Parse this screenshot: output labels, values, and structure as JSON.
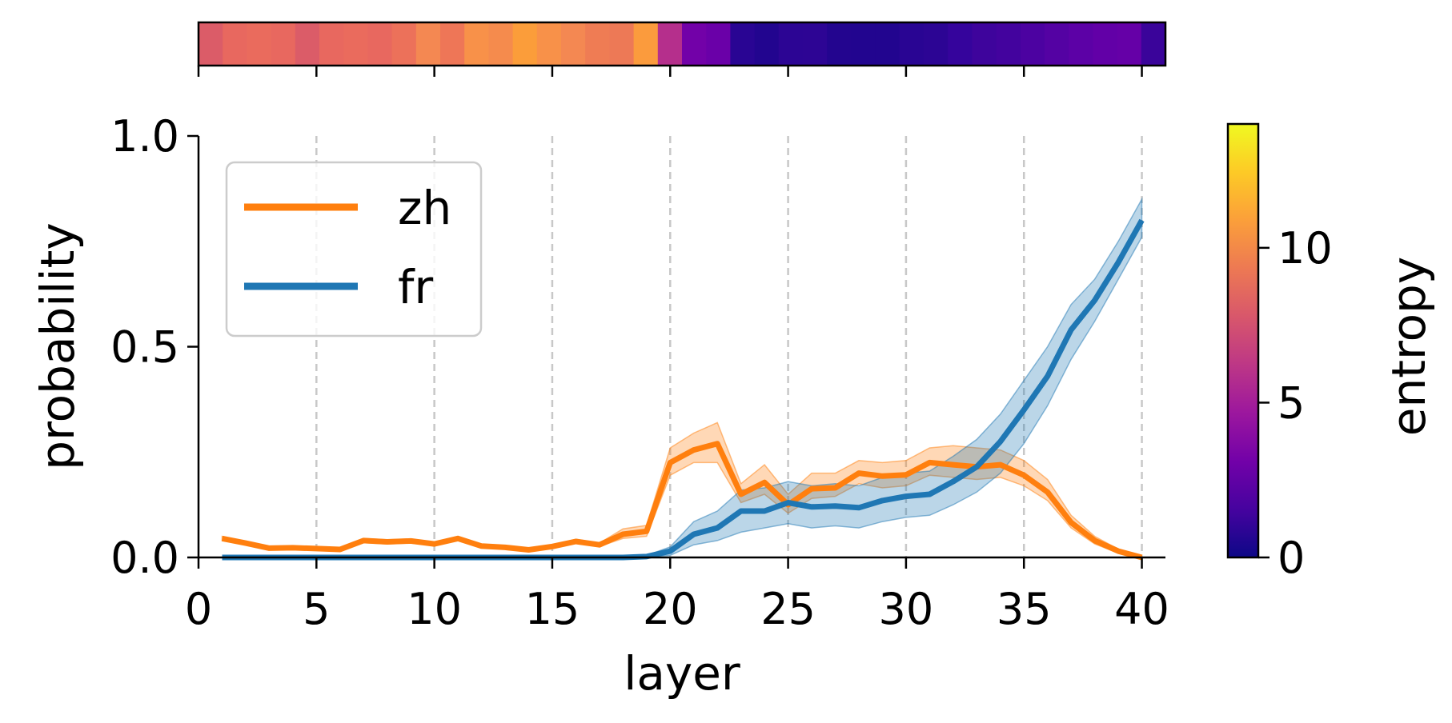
{
  "chart_data": {
    "type": "line",
    "xlabel": "layer",
    "ylabel": "probability",
    "xlim": [
      0,
      41
    ],
    "ylim": [
      0,
      1
    ],
    "x_ticks": [
      0,
      5,
      10,
      15,
      20,
      25,
      30,
      35,
      40
    ],
    "x_tick_labels": [
      "0",
      "5",
      "10",
      "15",
      "20",
      "25",
      "30",
      "35",
      "40"
    ],
    "y_ticks": [
      0,
      0.5,
      1
    ],
    "y_tick_labels": [
      "0.0",
      "0.5",
      "1.0"
    ],
    "grid": "vertical dashed lines at x ticks",
    "legend": {
      "placement": "top-left",
      "entries": [
        "zh",
        "fr"
      ]
    },
    "x": [
      1,
      2,
      3,
      4,
      5,
      6,
      7,
      8,
      9,
      10,
      11,
      12,
      13,
      14,
      15,
      16,
      17,
      18,
      19,
      20,
      21,
      22,
      23,
      24,
      25,
      26,
      27,
      28,
      29,
      30,
      31,
      32,
      33,
      34,
      35,
      36,
      37,
      38,
      39,
      40
    ],
    "series": [
      {
        "name": "zh",
        "color": "#ff7f0e",
        "values": [
          0.045,
          0.034,
          0.022,
          0.023,
          0.021,
          0.019,
          0.04,
          0.037,
          0.039,
          0.032,
          0.045,
          0.027,
          0.024,
          0.018,
          0.026,
          0.038,
          0.03,
          0.055,
          0.062,
          0.225,
          0.255,
          0.27,
          0.15,
          0.178,
          0.125,
          0.163,
          0.165,
          0.2,
          0.193,
          0.196,
          0.225,
          0.22,
          0.215,
          0.22,
          0.195,
          0.155,
          0.083,
          0.04,
          0.015,
          0.0
        ],
        "band_lower": [
          0.04,
          0.03,
          0.019,
          0.02,
          0.018,
          0.016,
          0.035,
          0.032,
          0.034,
          0.028,
          0.04,
          0.023,
          0.02,
          0.015,
          0.022,
          0.033,
          0.026,
          0.045,
          0.05,
          0.195,
          0.225,
          0.225,
          0.13,
          0.15,
          0.105,
          0.14,
          0.145,
          0.175,
          0.165,
          0.17,
          0.195,
          0.19,
          0.185,
          0.19,
          0.17,
          0.135,
          0.07,
          0.032,
          0.01,
          0.0
        ],
        "band_upper": [
          0.05,
          0.038,
          0.025,
          0.026,
          0.024,
          0.022,
          0.045,
          0.042,
          0.044,
          0.036,
          0.05,
          0.031,
          0.028,
          0.021,
          0.03,
          0.043,
          0.034,
          0.068,
          0.076,
          0.26,
          0.295,
          0.32,
          0.175,
          0.22,
          0.15,
          0.2,
          0.2,
          0.23,
          0.225,
          0.23,
          0.26,
          0.265,
          0.26,
          0.255,
          0.23,
          0.185,
          0.1,
          0.05,
          0.02,
          0.0
        ]
      },
      {
        "name": "fr",
        "color": "#1f77b4",
        "values": [
          0.0,
          0.0,
          0.0,
          0.0,
          0.0,
          0.0,
          0.0,
          0.0,
          0.0,
          0.0,
          0.0,
          0.0,
          0.0,
          0.0,
          0.0,
          0.0,
          0.0,
          0.0,
          0.002,
          0.015,
          0.055,
          0.07,
          0.11,
          0.11,
          0.13,
          0.12,
          0.122,
          0.118,
          0.135,
          0.145,
          0.15,
          0.18,
          0.215,
          0.275,
          0.35,
          0.43,
          0.54,
          0.61,
          0.7,
          0.8
        ],
        "band_lower": [
          0.0,
          0.0,
          0.0,
          0.0,
          0.0,
          0.0,
          0.0,
          0.0,
          0.0,
          0.0,
          0.0,
          0.0,
          0.0,
          0.0,
          0.0,
          0.0,
          0.0,
          0.0,
          0.0,
          0.005,
          0.03,
          0.04,
          0.06,
          0.07,
          0.08,
          0.07,
          0.075,
          0.07,
          0.085,
          0.095,
          0.1,
          0.125,
          0.155,
          0.2,
          0.27,
          0.36,
          0.47,
          0.56,
          0.66,
          0.76
        ],
        "band_upper": [
          0.0,
          0.0,
          0.0,
          0.0,
          0.0,
          0.0,
          0.0,
          0.0,
          0.0,
          0.0,
          0.0,
          0.0,
          0.0,
          0.0,
          0.0,
          0.0,
          0.0,
          0.0,
          0.005,
          0.025,
          0.085,
          0.11,
          0.16,
          0.165,
          0.18,
          0.17,
          0.175,
          0.17,
          0.19,
          0.2,
          0.205,
          0.24,
          0.28,
          0.34,
          0.42,
          0.5,
          0.6,
          0.66,
          0.75,
          0.85
        ]
      }
    ],
    "entropy_strip": {
      "colors": [
        "#db5c68",
        "#e8685f",
        "#ea6b5d",
        "#e8685f",
        "#db5c68",
        "#e8685f",
        "#ea6b5d",
        "#e8685f",
        "#ec715a",
        "#f48852",
        "#ee7657",
        "#f89149",
        "#f58b4d",
        "#fb9d3a",
        "#f89149",
        "#f48852",
        "#ef7c54",
        "#ed7956",
        "#fb9b3d",
        "#b52f8c",
        "#7201a8",
        "#6a00a8",
        "#290593",
        "#22058f",
        "#2c0594",
        "#2d0594",
        "#23058f",
        "#22058f",
        "#22058f",
        "#290593",
        "#2c0594",
        "#35049c",
        "#3e049c",
        "#43039e",
        "#4c02a1",
        "#5402a3",
        "#5c01a6",
        "#6200a7",
        "#6500a7",
        "#3a049a"
      ]
    },
    "colorbar": {
      "label": "entropy",
      "ticks": [
        0,
        5,
        10
      ],
      "tick_labels": [
        "0",
        "5",
        "10"
      ],
      "range": [
        0,
        14
      ],
      "colormap": [
        "#0d0887",
        "#46039f",
        "#7201a8",
        "#9c179e",
        "#bd3786",
        "#d8576b",
        "#ed7953",
        "#fb9f3a",
        "#fdca26",
        "#f0f921"
      ]
    }
  }
}
